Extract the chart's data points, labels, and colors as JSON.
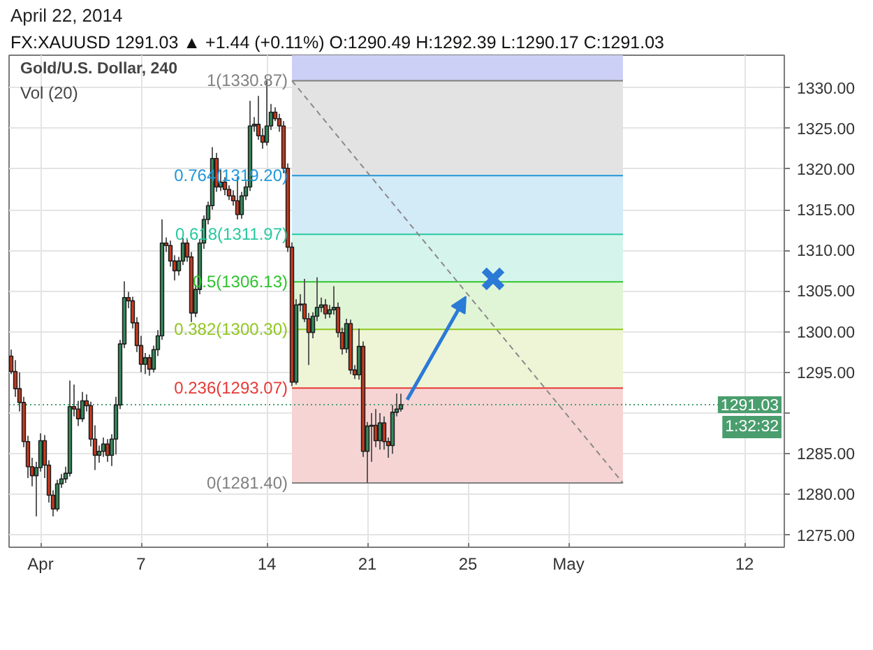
{
  "chart_data": {
    "type": "candlestick",
    "title": "April 22, 2014",
    "subtitle": "FX:XAUUSD 1291.03 ▲ +1.44 (+0.11%) O:1290.49 H:1292.39 L:1290.17 C:1291.03",
    "annotations": [
      "Gold/U.S. Dollar, 240",
      "Vol (20)",
      "1:32:32"
    ],
    "categories": [
      null,
      null,
      null,
      null,
      null,
      null,
      null,
      "Apr",
      null,
      null,
      null,
      null,
      null,
      null,
      null,
      null,
      null,
      null,
      null,
      null,
      null,
      null,
      null,
      null,
      null,
      null,
      null,
      null,
      null,
      null,
      null,
      "7",
      null,
      null,
      null,
      null,
      null,
      null,
      null,
      null,
      null,
      null,
      null,
      null,
      null,
      null,
      null,
      null,
      null,
      null,
      null,
      null,
      null,
      null,
      null,
      null,
      null,
      null,
      null,
      null,
      null,
      "14",
      null,
      null,
      null,
      null,
      null,
      null,
      null,
      null,
      null,
      null,
      null,
      null,
      null,
      null,
      null,
      null,
      null,
      null,
      null,
      null,
      null,
      null,
      null,
      "21",
      null,
      null,
      null,
      null,
      null,
      null,
      null,
      null,
      null,
      null,
      null,
      null,
      null,
      null,
      null,
      null,
      null,
      null,
      null,
      null,
      null,
      null,
      null,
      "25",
      null,
      null,
      null,
      null,
      null,
      null,
      null,
      null,
      null,
      null,
      null,
      null,
      null,
      null,
      null,
      null,
      null,
      null,
      null,
      null,
      null,
      null,
      null,
      "May",
      null,
      null,
      null,
      null,
      null,
      null,
      null,
      null,
      null,
      null,
      null,
      null,
      null,
      null,
      null,
      null,
      null,
      null,
      null,
      null,
      null,
      null,
      null,
      null,
      null,
      null,
      null,
      null,
      null,
      null,
      null,
      null,
      null,
      null,
      null,
      null,
      null,
      null,
      null,
      null,
      null,
      "12",
      null,
      null,
      null,
      null,
      null,
      null,
      null,
      null,
      null
    ],
    "ohlc": [
      [
        1297.0,
        1297.8,
        1294.8,
        1295.1
      ],
      [
        1295.1,
        1296.5,
        1292.0,
        1293.0
      ],
      [
        1293.0,
        1295.0,
        1290.2,
        1291.3
      ],
      [
        1291.3,
        1292.0,
        1285.8,
        1286.5
      ],
      [
        1286.5,
        1287.2,
        1282.0,
        1283.4
      ],
      [
        1283.4,
        1284.5,
        1281.0,
        1282.3
      ],
      [
        1282.3,
        1284.0,
        1277.3,
        1283.3
      ],
      [
        1283.3,
        1287.5,
        1282.8,
        1286.6
      ],
      [
        1286.6,
        1287.3,
        1282.0,
        1283.6
      ],
      [
        1283.6,
        1284.2,
        1279.0,
        1279.9
      ],
      [
        1279.9,
        1280.5,
        1277.3,
        1278.2
      ],
      [
        1278.2,
        1281.8,
        1277.9,
        1281.3
      ],
      [
        1281.3,
        1282.5,
        1280.8,
        1281.9
      ],
      [
        1281.9,
        1283.4,
        1281.4,
        1282.6
      ],
      [
        1282.6,
        1294.0,
        1282.2,
        1290.8
      ],
      [
        1290.8,
        1293.5,
        1289.6,
        1290.5
      ],
      [
        1290.5,
        1291.5,
        1288.4,
        1289.3
      ],
      [
        1289.3,
        1292.6,
        1288.9,
        1291.5
      ],
      [
        1291.5,
        1292.3,
        1290.2,
        1290.9
      ],
      [
        1290.9,
        1291.4,
        1285.9,
        1286.8
      ],
      [
        1286.8,
        1288.5,
        1283.0,
        1284.8
      ],
      [
        1284.8,
        1286.0,
        1283.9,
        1285.3
      ],
      [
        1285.3,
        1287.0,
        1284.6,
        1286.2
      ],
      [
        1286.2,
        1286.8,
        1284.0,
        1284.8
      ],
      [
        1284.8,
        1287.4,
        1283.5,
        1286.8
      ],
      [
        1286.8,
        1292.0,
        1284.9,
        1291.0
      ],
      [
        1291.0,
        1299.0,
        1290.5,
        1298.5
      ],
      [
        1298.5,
        1306.2,
        1298.0,
        1304.2
      ],
      [
        1304.2,
        1304.9,
        1302.9,
        1303.8
      ],
      [
        1303.8,
        1304.3,
        1300.4,
        1301.1
      ],
      [
        1301.1,
        1301.8,
        1297.5,
        1298.3
      ],
      [
        1298.3,
        1299.5,
        1295.0,
        1296.0
      ],
      [
        1296.0,
        1297.4,
        1294.8,
        1296.8
      ],
      [
        1296.8,
        1297.2,
        1294.6,
        1295.4
      ],
      [
        1295.4,
        1298.3,
        1295.0,
        1297.8
      ],
      [
        1297.8,
        1300.2,
        1297.0,
        1299.5
      ],
      [
        1299.5,
        1313.8,
        1299.0,
        1310.9
      ],
      [
        1310.9,
        1311.6,
        1309.8,
        1310.6
      ],
      [
        1310.6,
        1311.2,
        1308.0,
        1308.7
      ],
      [
        1308.7,
        1309.4,
        1306.3,
        1307.5
      ],
      [
        1307.5,
        1309.2,
        1306.9,
        1308.7
      ],
      [
        1308.7,
        1311.5,
        1308.2,
        1310.9
      ],
      [
        1310.9,
        1311.3,
        1308.6,
        1309.2
      ],
      [
        1309.2,
        1309.8,
        1301.2,
        1302.3
      ],
      [
        1302.3,
        1305.8,
        1301.8,
        1305.2
      ],
      [
        1305.2,
        1311.4,
        1304.6,
        1310.9
      ],
      [
        1310.9,
        1314.3,
        1310.2,
        1313.8
      ],
      [
        1313.8,
        1316.0,
        1313.2,
        1315.5
      ],
      [
        1315.5,
        1322.7,
        1315.0,
        1321.3
      ],
      [
        1321.3,
        1322.0,
        1317.2,
        1317.8
      ],
      [
        1317.8,
        1319.9,
        1317.3,
        1318.4
      ],
      [
        1318.4,
        1319.0,
        1316.8,
        1317.5
      ],
      [
        1317.5,
        1318.0,
        1316.2,
        1316.7
      ],
      [
        1316.7,
        1317.4,
        1315.5,
        1316.1
      ],
      [
        1316.1,
        1319.0,
        1313.8,
        1314.4
      ],
      [
        1314.4,
        1317.2,
        1313.9,
        1316.7
      ],
      [
        1316.7,
        1318.5,
        1316.2,
        1317.8
      ],
      [
        1317.8,
        1328.4,
        1317.3,
        1325.3
      ],
      [
        1325.3,
        1326.4,
        1324.6,
        1325.5
      ],
      [
        1325.5,
        1329.0,
        1323.6,
        1324.1
      ],
      [
        1324.1,
        1325.0,
        1322.5,
        1323.3
      ],
      [
        1323.3,
        1330.87,
        1322.9,
        1325.3
      ],
      [
        1325.3,
        1328.0,
        1324.8,
        1327.0
      ],
      [
        1327.0,
        1327.6,
        1325.9,
        1326.2
      ],
      [
        1326.2,
        1326.8,
        1324.6,
        1325.3
      ],
      [
        1325.3,
        1325.9,
        1319.5,
        1320.1
      ],
      [
        1320.1,
        1320.7,
        1309.8,
        1310.4
      ],
      [
        1310.4,
        1311.0,
        1293.3,
        1293.8
      ],
      [
        1293.8,
        1304.0,
        1293.5,
        1303.3
      ],
      [
        1303.3,
        1304.6,
        1302.5,
        1303.4
      ],
      [
        1303.4,
        1306.5,
        1301.2,
        1301.6
      ],
      [
        1301.6,
        1302.3,
        1295.9,
        1299.9
      ],
      [
        1299.9,
        1302.4,
        1299.2,
        1301.9
      ],
      [
        1301.9,
        1306.7,
        1301.3,
        1303.0
      ],
      [
        1303.0,
        1304.2,
        1302.4,
        1303.3
      ],
      [
        1303.3,
        1304.0,
        1301.6,
        1302.2
      ],
      [
        1302.2,
        1303.3,
        1301.7,
        1302.7
      ],
      [
        1302.7,
        1305.6,
        1302.1,
        1303.0
      ],
      [
        1303.0,
        1303.6,
        1299.3,
        1299.9
      ],
      [
        1299.9,
        1300.5,
        1297.2,
        1297.9
      ],
      [
        1297.9,
        1301.6,
        1297.4,
        1301.0
      ],
      [
        1301.0,
        1301.5,
        1294.8,
        1295.3
      ],
      [
        1295.3,
        1295.9,
        1294.2,
        1294.7
      ],
      [
        1294.7,
        1300.4,
        1294.1,
        1298.2
      ],
      [
        1298.2,
        1298.8,
        1284.6,
        1285.3
      ],
      [
        1285.3,
        1288.9,
        1281.4,
        1288.4
      ],
      [
        1288.4,
        1290.0,
        1284.0,
        1288.5
      ],
      [
        1288.5,
        1290.5,
        1285.8,
        1286.6
      ],
      [
        1286.6,
        1290.0,
        1285.5,
        1288.8
      ],
      [
        1288.8,
        1289.6,
        1285.5,
        1286.5
      ],
      [
        1286.5,
        1287.0,
        1284.5,
        1286.0
      ],
      [
        1286.0,
        1291.0,
        1285.0,
        1290.1
      ],
      [
        1290.1,
        1292.4,
        1289.6,
        1290.5
      ],
      [
        1290.49,
        1292.39,
        1290.17,
        1291.03
      ],
      null,
      null,
      null,
      null,
      null,
      null,
      null,
      null,
      null,
      null,
      null,
      null,
      null,
      null,
      null,
      null,
      null,
      null,
      null,
      null,
      null,
      null,
      null,
      null,
      null,
      null,
      null,
      null,
      null,
      null,
      null,
      null,
      null,
      null,
      null,
      null,
      null,
      null,
      null,
      null,
      null,
      null,
      null,
      null,
      null,
      null,
      null,
      null,
      null,
      null,
      null,
      null,
      null,
      null,
      null,
      null,
      null,
      null,
      null,
      null,
      null,
      null,
      null,
      null,
      null,
      null,
      null,
      null,
      null,
      null,
      null,
      null,
      null,
      null,
      null,
      null,
      null,
      null,
      null,
      null,
      null,
      null,
      null,
      null,
      null,
      null,
      null,
      null,
      null,
      null,
      null
    ],
    "colors": [
      "#cc3a1e",
      "#cc3a1e",
      "#cc3a1e",
      "#cc3a1e",
      "#cc3a1e",
      "#cc3a1e",
      "#358c5c",
      "#358c5c",
      "#cc3a1e",
      "#cc3a1e",
      "#cc3a1e",
      "#358c5c",
      "#358c5c",
      "#358c5c",
      "#358c5c",
      "#cc3a1e",
      "#cc3a1e",
      "#358c5c",
      "#cc3a1e",
      "#cc3a1e",
      "#cc3a1e",
      "#358c5c",
      "#358c5c",
      "#cc3a1e",
      "#358c5c",
      "#358c5c",
      "#358c5c",
      "#358c5c",
      "#cc3a1e",
      "#cc3a1e",
      "#cc3a1e",
      "#cc3a1e",
      "#358c5c",
      "#cc3a1e",
      "#358c5c",
      "#358c5c",
      "#358c5c",
      "#cc3a1e",
      "#cc3a1e",
      "#cc3a1e",
      "#358c5c",
      "#358c5c",
      "#cc3a1e",
      "#cc3a1e",
      "#358c5c",
      "#358c5c",
      "#358c5c",
      "#358c5c",
      "#358c5c",
      "#cc3a1e",
      "#358c5c",
      "#cc3a1e",
      "#cc3a1e",
      "#cc3a1e",
      "#cc3a1e",
      "#358c5c",
      "#358c5c",
      "#358c5c",
      "#358c5c",
      "#cc3a1e",
      "#cc3a1e",
      "#358c5c",
      "#358c5c",
      "#cc3a1e",
      "#cc3a1e",
      "#cc3a1e",
      "#cc3a1e",
      "#cc3a1e",
      "#358c5c",
      "#358c5c",
      "#cc3a1e",
      "#cc3a1e",
      "#358c5c",
      "#358c5c",
      "#358c5c",
      "#cc3a1e",
      "#358c5c",
      "#358c5c",
      "#cc3a1e",
      "#cc3a1e",
      "#358c5c",
      "#cc3a1e",
      "#cc3a1e",
      "#358c5c",
      "#cc3a1e",
      "#358c5c",
      "#358c5c",
      "#cc3a1e",
      "#358c5c",
      "#cc3a1e",
      "#cc3a1e",
      "#358c5c",
      "#358c5c",
      "#358c5c",
      null,
      null,
      null,
      null,
      null,
      null,
      null,
      null,
      null,
      null,
      null,
      null,
      null,
      null,
      null,
      null,
      null,
      null,
      null,
      null,
      null,
      null,
      null,
      null,
      null,
      null,
      null,
      null,
      null,
      null,
      null,
      null,
      null,
      null,
      null,
      null,
      null,
      null,
      null,
      null,
      null,
      null,
      null,
      null,
      null,
      null,
      null,
      null,
      null,
      null,
      null,
      null,
      null,
      null,
      null,
      null,
      null,
      null,
      null,
      null,
      null,
      null,
      null,
      null,
      null,
      null,
      null,
      null,
      null,
      null,
      null,
      null,
      null,
      null,
      null,
      null,
      null,
      null,
      null,
      null,
      null,
      null,
      null,
      null,
      null,
      null,
      null,
      null,
      null,
      null,
      null
    ],
    "series": [
      {
        "type": "line",
        "color": "#8a8a8a",
        "line_style": "dashed",
        "values": [
          null,
          null,
          null,
          null,
          null,
          null,
          null,
          null,
          null,
          null,
          null,
          null,
          null,
          null,
          null,
          null,
          null,
          null,
          null,
          null,
          null,
          null,
          null,
          null,
          null,
          null,
          null,
          null,
          null,
          null,
          null,
          null,
          null,
          null,
          null,
          null,
          null,
          null,
          null,
          null,
          null,
          null,
          null,
          null,
          null,
          null,
          null,
          null,
          null,
          null,
          null,
          null,
          null,
          null,
          null,
          null,
          null,
          null,
          null,
          null,
          null,
          null,
          null,
          null,
          null,
          null,
          null,
          1330.87,
          null,
          null,
          null,
          null,
          null,
          null,
          null,
          null,
          null,
          null,
          null,
          null,
          null,
          null,
          null,
          null,
          null,
          null,
          null,
          null,
          null,
          null,
          null,
          null,
          null,
          null,
          null,
          null,
          null,
          null,
          null,
          null,
          null,
          null,
          null,
          null,
          null,
          null,
          null,
          null,
          null,
          null,
          null,
          null,
          null,
          null,
          null,
          null,
          null,
          null,
          null,
          null,
          null,
          null,
          null,
          null,
          null,
          null,
          null,
          null,
          null,
          null,
          null,
          null,
          null,
          null,
          null,
          null,
          null,
          null,
          null,
          null,
          null,
          null,
          null,
          null,
          null,
          null,
          1281.4,
          null,
          null,
          null,
          null,
          null,
          null,
          null,
          null,
          null,
          null,
          null,
          null,
          null,
          null,
          null,
          null,
          null,
          null,
          null,
          null,
          null,
          null,
          null,
          null,
          null,
          null,
          null,
          null,
          null,
          null,
          null,
          null,
          null,
          null,
          null,
          null,
          null,
          null
        ]
      },
      {
        "type": "scatter",
        "color": "#2b7ad6",
        "marker": "cross",
        "values": [
          null,
          null,
          null,
          null,
          null,
          null,
          null,
          null,
          null,
          null,
          null,
          null,
          null,
          null,
          null,
          null,
          null,
          null,
          null,
          null,
          null,
          null,
          null,
          null,
          null,
          null,
          null,
          null,
          null,
          null,
          null,
          null,
          null,
          null,
          null,
          null,
          null,
          null,
          null,
          null,
          null,
          null,
          null,
          null,
          null,
          null,
          null,
          null,
          null,
          null,
          null,
          null,
          null,
          null,
          null,
          null,
          null,
          null,
          null,
          null,
          null,
          null,
          null,
          null,
          null,
          null,
          null,
          null,
          null,
          null,
          null,
          null,
          null,
          null,
          null,
          null,
          null,
          null,
          null,
          null,
          null,
          null,
          null,
          null,
          null,
          null,
          null,
          null,
          null,
          null,
          null,
          null,
          null,
          null,
          null,
          null,
          null,
          null,
          null,
          null,
          null,
          null,
          null,
          null,
          null,
          null,
          null,
          null,
          null,
          null,
          null,
          null,
          null,
          null,
          null,
          1306.5,
          null,
          null,
          null,
          null,
          null,
          null,
          null,
          null,
          null,
          null,
          null,
          null,
          null,
          null,
          null,
          null,
          null,
          null,
          null,
          null,
          null,
          null,
          null,
          null,
          null,
          null,
          null,
          null,
          null,
          null,
          null,
          null,
          null,
          null,
          null,
          null,
          null,
          null,
          null,
          null,
          null,
          null,
          null,
          null,
          null,
          null,
          null,
          null,
          null,
          null,
          null,
          null,
          null,
          null,
          null,
          null,
          null,
          null,
          null,
          null,
          null,
          null,
          null,
          null,
          null,
          null,
          null,
          null,
          null
        ]
      }
    ],
    "bands": [
      {
        "axis": "y",
        "from": 1330.87,
        "to": 1334,
        "color": "#cdd0f6"
      },
      {
        "axis": "y",
        "from": 1319.2,
        "to": 1330.87,
        "color": "#e3e3e3"
      },
      {
        "axis": "y",
        "from": 1311.97,
        "to": 1319.2,
        "color": "#d3eaf7"
      },
      {
        "axis": "y",
        "from": 1306.13,
        "to": 1311.97,
        "color": "#d5f5ec"
      },
      {
        "axis": "y",
        "from": 1300.3,
        "to": 1306.13,
        "color": "#e0f5d6"
      },
      {
        "axis": "y",
        "from": 1293.07,
        "to": 1300.3,
        "color": "#eef5d6"
      },
      {
        "axis": "y",
        "from": 1281.4,
        "to": 1293.07,
        "color": "#f6d4d4"
      }
    ],
    "ref_lines": [
      {
        "axis": "y",
        "value": 1330.87,
        "label": "1(1330.87)",
        "color": "#808080"
      },
      {
        "axis": "y",
        "value": 1319.2,
        "label": "0.764(1319.20)",
        "color": "#2196d9"
      },
      {
        "axis": "y",
        "value": 1311.97,
        "label": "0.618(1311.97)",
        "color": "#26c99f"
      },
      {
        "axis": "y",
        "value": 1306.13,
        "label": "0.5(1306.13)",
        "color": "#2ec32e"
      },
      {
        "axis": "y",
        "value": 1300.3,
        "label": "0.382(1300.30)",
        "color": "#8fc71f"
      },
      {
        "axis": "y",
        "value": 1293.07,
        "label": "0.236(1293.07)",
        "color": "#e53935"
      },
      {
        "axis": "y",
        "value": 1281.4,
        "label": "0(1281.40)",
        "color": "#808080"
      },
      {
        "axis": "y",
        "value": 1291.03,
        "label": "1291.03",
        "color": "#4a9e6e",
        "line_style": "dotted"
      }
    ],
    "ylim": [
      1273.5,
      1334
    ],
    "yticks": [
      {
        "value": 1275,
        "label": "1275.00"
      },
      {
        "value": 1280,
        "label": "1280.00"
      },
      {
        "value": 1285,
        "label": "1285.00"
      },
      {
        "value": 1290,
        "label": null
      },
      {
        "value": 1295,
        "label": "1295.00"
      },
      {
        "value": 1300,
        "label": "1300.00"
      },
      {
        "value": 1305,
        "label": "1305.00"
      },
      {
        "value": 1310,
        "label": "1310.00"
      },
      {
        "value": 1315,
        "label": "1315.00"
      },
      {
        "value": 1320,
        "label": "1320.00"
      },
      {
        "value": 1325,
        "label": "1325.00"
      },
      {
        "value": 1330,
        "label": "1330.00"
      }
    ],
    "grid": true
  }
}
